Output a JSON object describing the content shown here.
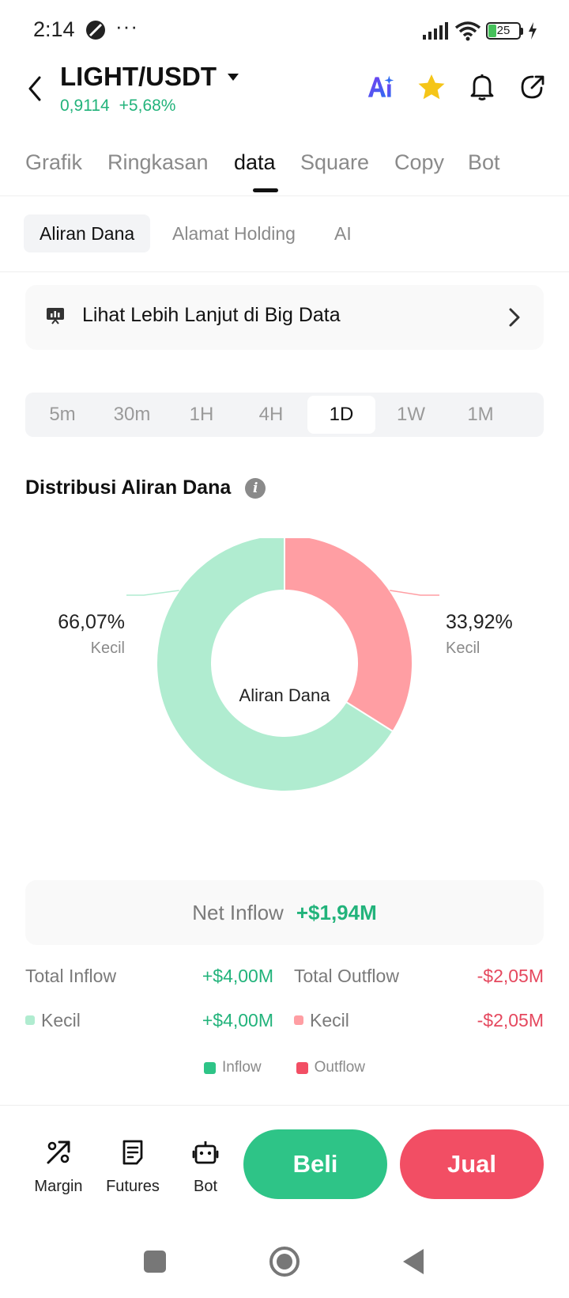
{
  "status": {
    "time": "2:14",
    "dots": "···",
    "battery": "25"
  },
  "header": {
    "pair": "LIGHT/USDT",
    "price": "0,9114",
    "change": "+5,68%"
  },
  "tabs": [
    "Grafik",
    "Ringkasan",
    "data",
    "Square",
    "Copy",
    "Bot"
  ],
  "active_tab": "data",
  "subtabs": [
    "Aliran Dana",
    "Alamat Holding",
    "AI"
  ],
  "active_subtab": "Aliran Dana",
  "bigdata": {
    "label": "Lihat Lebih Lanjut di Big Data"
  },
  "timeframes": [
    "5m",
    "30m",
    "1H",
    "4H",
    "1D",
    "1W",
    "1M"
  ],
  "active_timeframe": "1D",
  "section": {
    "title": "Distribusi Aliran Dana"
  },
  "chart_data": {
    "type": "pie",
    "center_label": "Aliran Dana",
    "slices": [
      {
        "label": "Kecil",
        "pct_text": "33,92%",
        "value": 33.92,
        "color": "#ff9ea3",
        "kind": "outflow"
      },
      {
        "label": "Kecil",
        "pct_text": "66,07%",
        "value": 66.07,
        "color": "#b0ecd0",
        "kind": "inflow"
      }
    ]
  },
  "netflow": {
    "label": "Net Inflow",
    "value": "+$1,94M"
  },
  "flows": {
    "total_inflow_label": "Total Inflow",
    "total_inflow_value": "+$4,00M",
    "total_outflow_label": "Total Outflow",
    "total_outflow_value": "-$2,05M",
    "small_in_label": "Kecil",
    "small_in_value": "+$4,00M",
    "small_out_label": "Kecil",
    "small_out_value": "-$2,05M"
  },
  "legend": {
    "inflow": "Inflow",
    "outflow": "Outflow",
    "inflow_color": "#2ec487",
    "outflow_color": "#f24e64"
  },
  "bottom": {
    "margin": "Margin",
    "futures": "Futures",
    "bot": "Bot",
    "buy": "Beli",
    "sell": "Jual"
  },
  "colors": {
    "green": "#22b37b",
    "red": "#e5485e"
  }
}
